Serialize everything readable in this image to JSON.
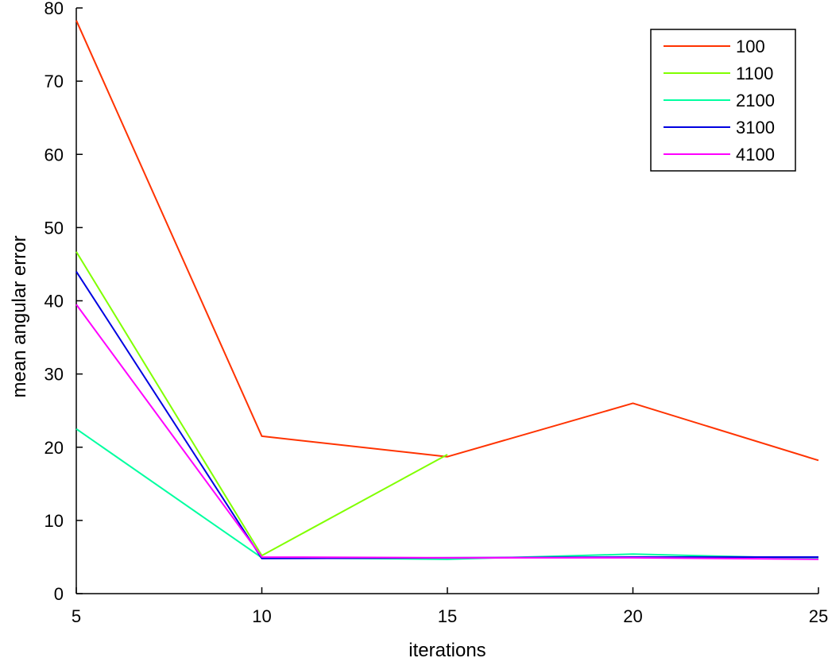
{
  "chart_data": {
    "type": "line",
    "title": "",
    "xlabel": "iterations",
    "ylabel": "mean angular error",
    "x": [
      5,
      10,
      15,
      20,
      25
    ],
    "xlim": [
      5,
      25
    ],
    "ylim": [
      0,
      80
    ],
    "xticks": [
      5,
      10,
      15,
      20,
      25
    ],
    "yticks": [
      0,
      10,
      20,
      30,
      40,
      50,
      60,
      70,
      80
    ],
    "grid": false,
    "legend_position": "top-right",
    "series": [
      {
        "name": "100",
        "color": "#ff3300",
        "values": [
          78.3,
          21.5,
          18.7,
          26.0,
          18.2
        ]
      },
      {
        "name": "1100",
        "color": "#80ff00",
        "values": [
          46.7,
          5.2,
          19.0,
          null,
          null
        ]
      },
      {
        "name": "2100",
        "color": "#00ffa0",
        "values": [
          22.5,
          4.9,
          4.7,
          5.4,
          4.8
        ]
      },
      {
        "name": "3100",
        "color": "#0000e0",
        "values": [
          44.0,
          4.8,
          4.9,
          5.0,
          5.0
        ]
      },
      {
        "name": "4100",
        "color": "#ff00ff",
        "values": [
          39.5,
          5.0,
          4.9,
          4.9,
          4.7
        ]
      }
    ]
  }
}
